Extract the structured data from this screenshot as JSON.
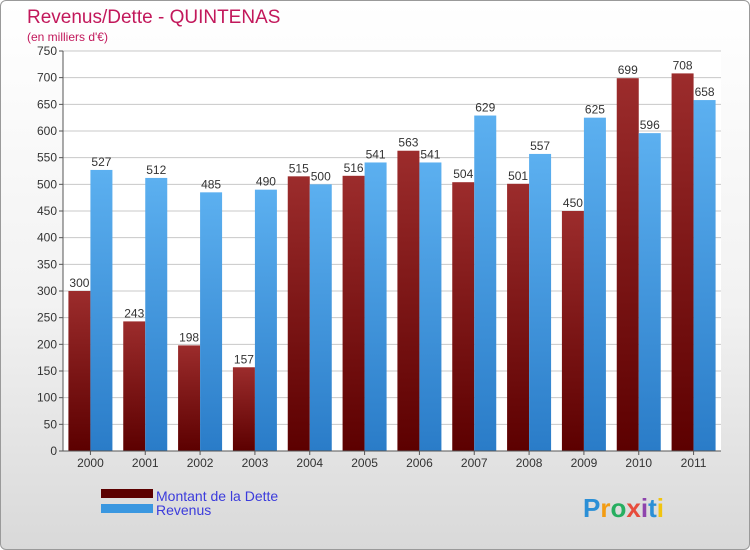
{
  "chart_data": {
    "type": "bar",
    "title": "Revenus/Dette - QUINTENAS",
    "subtitle": "(en milliers d'€)",
    "categories": [
      "2000",
      "2001",
      "2002",
      "2003",
      "2004",
      "2005",
      "2006",
      "2007",
      "2008",
      "2009",
      "2010",
      "2011"
    ],
    "series": [
      {
        "name": "Montant de la Dette",
        "color": "#8b1c1c",
        "values": [
          300,
          243,
          198,
          157,
          515,
          516,
          563,
          504,
          501,
          450,
          699,
          708
        ]
      },
      {
        "name": "Revenus",
        "color": "#3a97e0",
        "values": [
          527,
          512,
          485,
          490,
          500,
          541,
          541,
          629,
          557,
          625,
          596,
          658
        ]
      }
    ],
    "ylim": [
      0,
      750
    ],
    "yticks": [
      0,
      50,
      100,
      150,
      200,
      250,
      300,
      350,
      400,
      450,
      500,
      550,
      600,
      650,
      700,
      750
    ],
    "grid": true,
    "legend": "bottom-left",
    "colors": {
      "title": "#c2185b",
      "legend_text": "#3b3bdc"
    }
  },
  "brand": {
    "name": "Proxiti"
  }
}
